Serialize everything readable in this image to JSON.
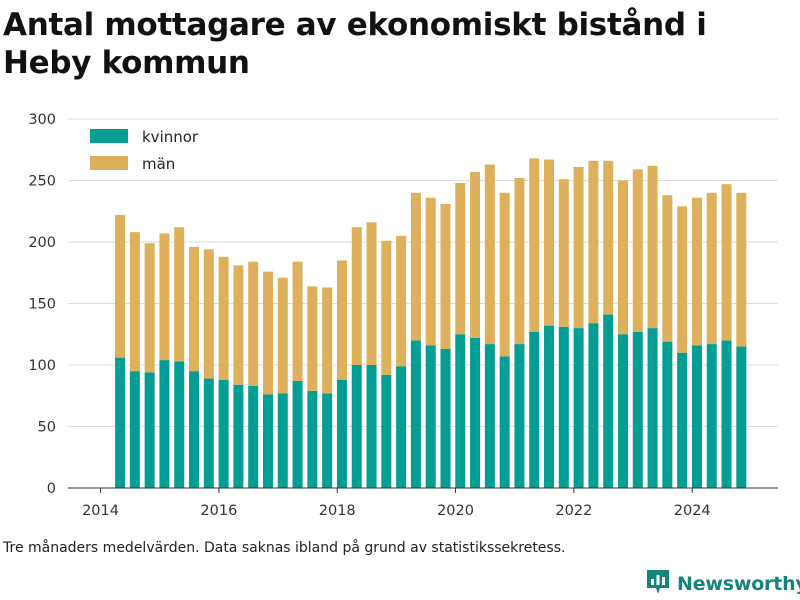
{
  "title": "Antal mottagare av ekonomiskt bistånd i Heby kommun",
  "footnote": "Tre månaders medelvärden. Data saknas ibland på grund av statistikssekretess.",
  "brand": {
    "name": "Newsworthy",
    "logo_icon": "bar-chart-tag-icon",
    "color": "#15847d"
  },
  "chart_data": {
    "type": "bar",
    "stacked": true,
    "x_axis": {
      "type": "year",
      "min": 2013.45,
      "max": 2025.45,
      "ticks": [
        2014,
        2016,
        2018,
        2020,
        2022,
        2024
      ]
    },
    "y_axis": {
      "min": 0,
      "max": 300,
      "ticks": [
        0,
        50,
        100,
        150,
        200,
        250,
        300
      ]
    },
    "grid": true,
    "legend_placement": "top-left",
    "x": [
      2014.33,
      2014.58,
      2014.83,
      2015.08,
      2015.33,
      2015.58,
      2015.83,
      2016.08,
      2016.33,
      2016.58,
      2016.83,
      2017.08,
      2017.33,
      2017.58,
      2017.83,
      2018.08,
      2018.33,
      2018.58,
      2018.83,
      2019.08,
      2019.33,
      2019.58,
      2019.83,
      2020.08,
      2020.33,
      2020.58,
      2020.83,
      2021.08,
      2021.33,
      2021.58,
      2021.83,
      2022.08,
      2022.33,
      2022.58,
      2022.83,
      2023.08,
      2023.33,
      2023.58,
      2023.83,
      2024.08,
      2024.33,
      2024.58,
      2024.83
    ],
    "series": [
      {
        "name": "kvinnor",
        "color": "#039e93",
        "values": [
          106,
          95,
          94,
          104,
          103,
          95,
          89,
          88,
          84,
          83,
          76,
          77,
          87,
          79,
          77,
          88,
          100,
          100,
          92,
          99,
          120,
          116,
          113,
          125,
          122,
          117,
          107,
          117,
          127,
          132,
          131,
          130,
          134,
          141,
          125,
          127,
          130,
          119,
          110,
          116,
          117,
          120,
          115
        ]
      },
      {
        "name": "män",
        "color": "#deb05c",
        "values": [
          116,
          113,
          105,
          103,
          109,
          101,
          105,
          100,
          97,
          101,
          100,
          94,
          97,
          85,
          86,
          97,
          112,
          116,
          109,
          106,
          120,
          120,
          118,
          123,
          135,
          146,
          133,
          135,
          141,
          135,
          120,
          131,
          132,
          125,
          125,
          132,
          132,
          119,
          119,
          120,
          123,
          127,
          125
        ]
      }
    ]
  }
}
